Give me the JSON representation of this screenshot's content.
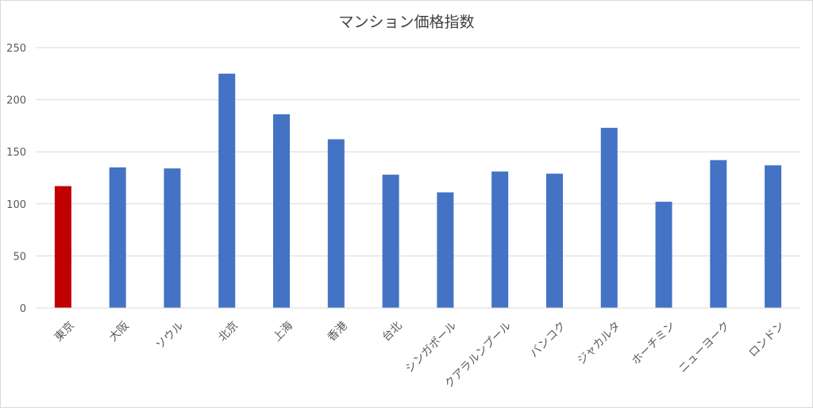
{
  "chart_data": {
    "type": "bar",
    "title": "マンション価格指数",
    "xlabel": "",
    "ylabel": "",
    "ylim": [
      0,
      250
    ],
    "yticks": [
      0,
      50,
      100,
      150,
      200,
      250
    ],
    "grid": true,
    "categories": [
      "東京",
      "大阪",
      "ソウル",
      "北京",
      "上海",
      "香港",
      "台北",
      "シンガポール",
      "クアラルンプール",
      "バンコク",
      "ジャカルタ",
      "ホーチミン",
      "ニューヨーク",
      "ロンドン"
    ],
    "values": [
      117,
      135,
      134,
      225,
      186,
      162,
      128,
      111,
      131,
      129,
      173,
      102,
      142,
      137
    ],
    "colors": {
      "highlight": "#c00000",
      "default": "#4472c4",
      "highlight_categories": [
        "東京"
      ]
    }
  }
}
